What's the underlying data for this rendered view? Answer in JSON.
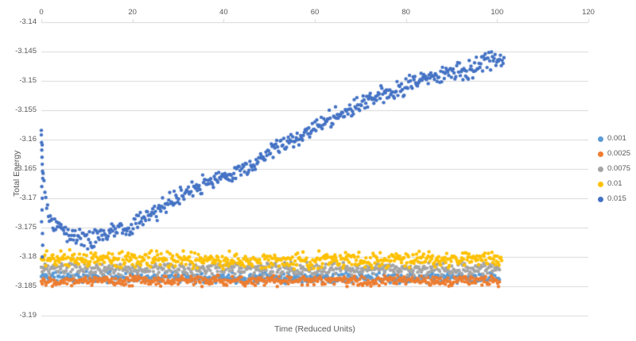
{
  "chart_data": {
    "type": "scatter",
    "title": "",
    "xlabel": "Time (Reduced Units)",
    "ylabel": "Total Energy",
    "xlim": [
      0,
      120
    ],
    "ylim": [
      -3.19,
      -3.14
    ],
    "x_tick_labels": [
      "0",
      "20",
      "40",
      "60",
      "80",
      "100",
      "120"
    ],
    "x_tick_values": [
      0,
      20,
      40,
      60,
      80,
      100,
      120
    ],
    "y_tick_labels": [
      "-3.14",
      "-3.145",
      "-3.15",
      "-3.155",
      "-3.16",
      "-3.165",
      "-3.17",
      "-3.175",
      "-3.18",
      "-3.185",
      "-3.19"
    ],
    "y_tick_values": [
      -3.14,
      -3.145,
      -3.15,
      -3.155,
      -3.16,
      -3.165,
      -3.17,
      -3.175,
      -3.18,
      -3.185,
      -3.19
    ],
    "x_axis_position": "top",
    "grid": "horizontal",
    "gridline_color": "#d9d9d9",
    "axis_text_color": "#595959",
    "legend_position": "right",
    "marker": "circle",
    "series": [
      {
        "name": "0.001",
        "color": "#5B9BD5",
        "n_points": 500,
        "x_range": [
          0,
          100.5
        ],
        "trend": [
          [
            0,
            -3.1834
          ],
          [
            100.5,
            -3.1836
          ]
        ],
        "noise": 0.00075,
        "seed": 11
      },
      {
        "name": "0.0025",
        "color": "#ED7D31",
        "n_points": 500,
        "x_range": [
          0,
          100.5
        ],
        "trend": [
          [
            0,
            -3.184
          ],
          [
            100.5,
            -3.1841
          ]
        ],
        "noise": 0.0007,
        "seed": 22
      },
      {
        "name": "0.0075",
        "color": "#A5A5A5",
        "n_points": 500,
        "x_range": [
          0,
          100.5
        ],
        "trend": [
          [
            0,
            -3.1821
          ],
          [
            100.5,
            -3.182
          ]
        ],
        "noise": 0.0008,
        "seed": 33
      },
      {
        "name": "0.01",
        "color": "#FFC000",
        "n_points": 520,
        "x_range": [
          0,
          101
        ],
        "trend": [
          [
            0,
            -3.1803
          ],
          [
            40,
            -3.1806
          ],
          [
            101,
            -3.1804
          ]
        ],
        "noise": 0.0011,
        "seed": 44
      },
      {
        "name": "0.015",
        "color": "#4472C4",
        "n_points": 520,
        "x_range": [
          0,
          101.5
        ],
        "trend": [
          [
            0,
            -3.159
          ],
          [
            0.5,
            -3.166
          ],
          [
            1,
            -3.17
          ],
          [
            2,
            -3.1735
          ],
          [
            4,
            -3.175
          ],
          [
            7,
            -3.1765
          ],
          [
            10,
            -3.177
          ],
          [
            13,
            -3.1765
          ],
          [
            16,
            -3.1755
          ],
          [
            19,
            -3.175
          ],
          [
            22,
            -3.1735
          ],
          [
            25,
            -3.1725
          ],
          [
            28,
            -3.1705
          ],
          [
            31,
            -3.1695
          ],
          [
            34,
            -3.168
          ],
          [
            37,
            -3.167
          ],
          [
            40,
            -3.1665
          ],
          [
            43,
            -3.1655
          ],
          [
            46,
            -3.1645
          ],
          [
            49,
            -3.1625
          ],
          [
            52,
            -3.1615
          ],
          [
            55,
            -3.16
          ],
          [
            58,
            -3.159
          ],
          [
            61,
            -3.1575
          ],
          [
            64,
            -3.156
          ],
          [
            67,
            -3.1555
          ],
          [
            70,
            -3.154
          ],
          [
            73,
            -3.1525
          ],
          [
            76,
            -3.152
          ],
          [
            79,
            -3.1515
          ],
          [
            82,
            -3.15
          ],
          [
            85,
            -3.1495
          ],
          [
            88,
            -3.149
          ],
          [
            91,
            -3.1485
          ],
          [
            94,
            -3.148
          ],
          [
            97,
            -3.147
          ],
          [
            100,
            -3.1462
          ],
          [
            101.5,
            -3.146
          ]
        ],
        "noise": 0.0012,
        "seed": 55,
        "extra_points": [
          [
            0,
            -3.1592
          ],
          [
            0.05,
            -3.1605
          ],
          [
            0.1,
            -3.1618
          ],
          [
            0.15,
            -3.163
          ],
          [
            0.2,
            -3.1642
          ],
          [
            0.25,
            -3.1654
          ],
          [
            0.3,
            -3.1666
          ],
          [
            0.1,
            -3.168
          ],
          [
            0.2,
            -3.17
          ],
          [
            0.15,
            -3.172
          ],
          [
            0.05,
            -3.174
          ],
          [
            0.25,
            -3.176
          ],
          [
            0.3,
            -3.178
          ],
          [
            0.2,
            -3.18
          ]
        ]
      }
    ]
  }
}
